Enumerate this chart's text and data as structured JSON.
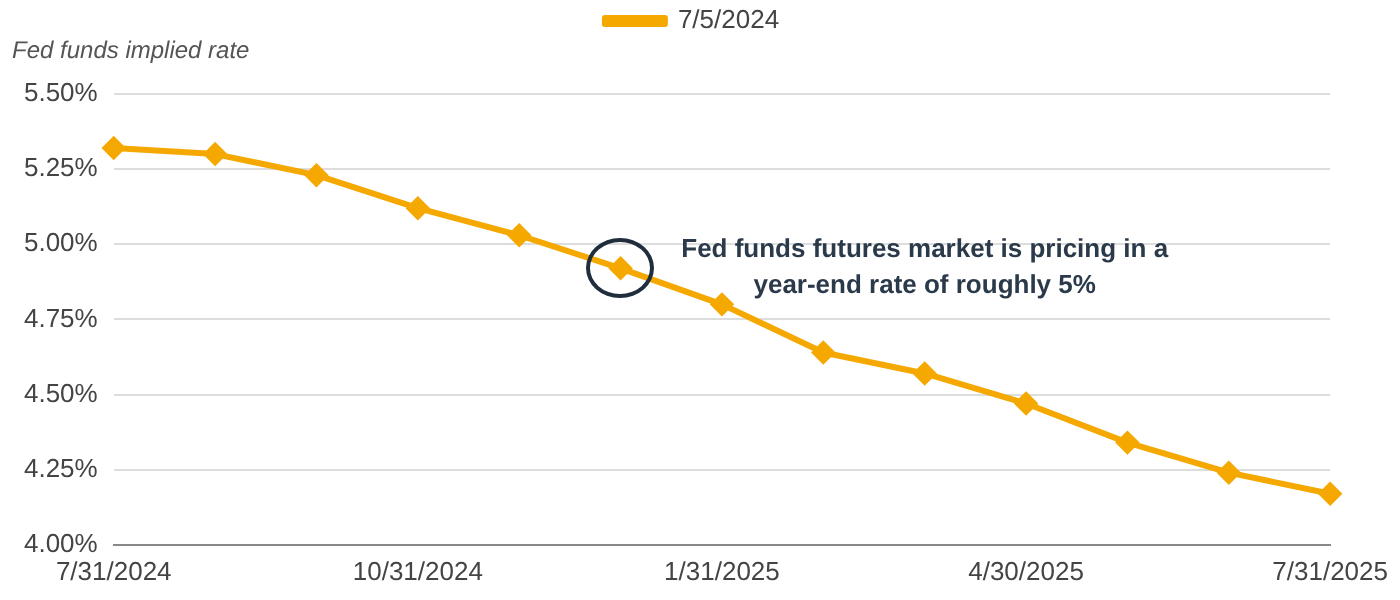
{
  "chart_data": {
    "type": "line",
    "ylabel": "Fed funds implied rate",
    "categories": [
      "7/31/2024",
      null,
      null,
      "10/31/2024",
      null,
      null,
      "1/31/2025",
      null,
      null,
      "4/30/2025",
      null,
      null,
      "7/31/2025"
    ],
    "series": [
      {
        "name": "7/5/2024",
        "color": "#f5a800",
        "values": [
          5.32,
          5.3,
          5.23,
          5.12,
          5.03,
          4.92,
          4.8,
          4.64,
          4.57,
          4.47,
          4.34,
          4.24,
          4.17
        ]
      }
    ],
    "ylim": [
      4,
      5.5
    ],
    "yticks": [
      {
        "value": 4,
        "label": "4.00%"
      },
      {
        "value": 4.25,
        "label": "4.25%"
      },
      {
        "value": 4.5,
        "label": "4.50%"
      },
      {
        "value": 4.75,
        "label": "4.75%"
      },
      {
        "value": 5,
        "label": "5.00%"
      },
      {
        "value": 5.25,
        "label": "5.25%"
      },
      {
        "value": 5.5,
        "label": "5.50%"
      }
    ],
    "grid": "y",
    "legend": "top",
    "marker": "diamond",
    "line_style": "solid",
    "annotations": [
      "Fed funds futures market is pricing in a\nyear-end rate of roughly 5%"
    ]
  }
}
